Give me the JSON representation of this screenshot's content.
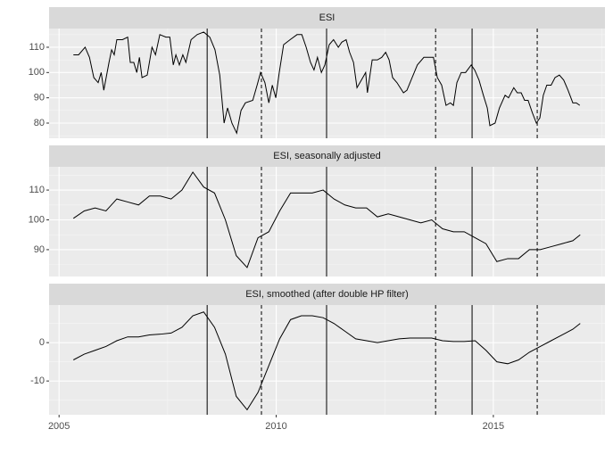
{
  "chart_data": [
    {
      "type": "line",
      "title": "ESI",
      "color": "#000000",
      "x": [
        2005.33,
        2005.45,
        2005.6,
        2005.7,
        2005.8,
        2005.9,
        2005.97,
        2006.03,
        2006.15,
        2006.21,
        2006.27,
        2006.33,
        2006.46,
        2006.58,
        2006.64,
        2006.72,
        2006.79,
        2006.85,
        2006.91,
        2007.03,
        2007.14,
        2007.22,
        2007.32,
        2007.46,
        2007.55,
        2007.63,
        2007.69,
        2007.77,
        2007.85,
        2007.92,
        2008.04,
        2008.18,
        2008.33,
        2008.47,
        2008.59,
        2008.7,
        2008.8,
        2008.88,
        2008.98,
        2009.09,
        2009.19,
        2009.29,
        2009.46,
        2009.56,
        2009.64,
        2009.74,
        2009.83,
        2009.91,
        2009.99,
        2010.07,
        2010.17,
        2010.32,
        2010.48,
        2010.59,
        2010.69,
        2010.79,
        2010.87,
        2010.95,
        2011.04,
        2011.12,
        2011.22,
        2011.32,
        2011.43,
        2011.51,
        2011.61,
        2011.69,
        2011.78,
        2011.86,
        2011.96,
        2012.06,
        2012.1,
        2012.21,
        2012.33,
        2012.43,
        2012.52,
        2012.6,
        2012.68,
        2012.78,
        2012.93,
        2013.01,
        2013.13,
        2013.25,
        2013.4,
        2013.52,
        2013.62,
        2013.71,
        2013.81,
        2013.91,
        2014.01,
        2014.08,
        2014.16,
        2014.26,
        2014.36,
        2014.49,
        2014.57,
        2014.67,
        2014.77,
        2014.86,
        2014.92,
        2015.04,
        2015.14,
        2015.27,
        2015.35,
        2015.47,
        2015.55,
        2015.64,
        2015.72,
        2015.8,
        2015.9,
        2015.99,
        2016.07,
        2016.15,
        2016.23,
        2016.33,
        2016.42,
        2016.52,
        2016.62,
        2016.72,
        2016.83,
        2016.91,
        2016.99
      ],
      "values": [
        107,
        107,
        110,
        106,
        98,
        96,
        100,
        93,
        104,
        109,
        107,
        113,
        113,
        114,
        104,
        104,
        100,
        106,
        98,
        99,
        110,
        107,
        115,
        114,
        114,
        103,
        107,
        103,
        107,
        104,
        113,
        115,
        116,
        114,
        109,
        99,
        80,
        86,
        80,
        76,
        85,
        88,
        89,
        95,
        100,
        96,
        88,
        95,
        90,
        100,
        111,
        113,
        115,
        115,
        110,
        104,
        101,
        106,
        100,
        103,
        111,
        113,
        110,
        112,
        113,
        108,
        104,
        94,
        97,
        100,
        92,
        105,
        105,
        106,
        108,
        105,
        98,
        96,
        92,
        93,
        98,
        103,
        106,
        106,
        106,
        98,
        95,
        87,
        88,
        87,
        96,
        100,
        100,
        103,
        101,
        97,
        91,
        86,
        79,
        80,
        86,
        91,
        90,
        94,
        92,
        92,
        89,
        89,
        84,
        80,
        82,
        91,
        95,
        95,
        98,
        99,
        97,
        93,
        88,
        88,
        87
      ],
      "xlim": [
        2004.77,
        2017.57
      ],
      "xticks": [
        2005,
        2010,
        2015
      ],
      "ylim": [
        74.0,
        117.4
      ],
      "yticks": [
        80,
        90,
        100,
        110
      ],
      "vlines": [
        {
          "x": 2008.41,
          "style": "solid"
        },
        {
          "x": 2009.66,
          "style": "dashed"
        },
        {
          "x": 2011.16,
          "style": "solid"
        },
        {
          "x": 2013.67,
          "style": "dashed"
        },
        {
          "x": 2014.51,
          "style": "solid"
        },
        {
          "x": 2016.01,
          "style": "dashed"
        }
      ],
      "grid": true
    },
    {
      "type": "line",
      "title": "ESI, seasonally adjusted",
      "color": "#000000",
      "x": [
        2005.33,
        2005.58,
        2005.83,
        2006.08,
        2006.33,
        2006.58,
        2006.83,
        2007.08,
        2007.33,
        2007.58,
        2007.83,
        2008.08,
        2008.33,
        2008.58,
        2008.83,
        2009.08,
        2009.33,
        2009.58,
        2009.83,
        2010.08,
        2010.33,
        2010.58,
        2010.83,
        2011.08,
        2011.33,
        2011.58,
        2011.83,
        2012.08,
        2012.33,
        2012.58,
        2012.83,
        2013.08,
        2013.33,
        2013.58,
        2013.83,
        2014.08,
        2014.33,
        2014.58,
        2014.83,
        2015.08,
        2015.33,
        2015.58,
        2015.83,
        2016.08,
        2016.33,
        2016.58,
        2016.83,
        2017.0
      ],
      "values": [
        100.5,
        103,
        104,
        103,
        107,
        106,
        105,
        108,
        108,
        107,
        110,
        116,
        111,
        109,
        100,
        88,
        84,
        94,
        96,
        103,
        109,
        109,
        109,
        110,
        107,
        105,
        104,
        104,
        101,
        102,
        101,
        100,
        99,
        100,
        97,
        96,
        96,
        94,
        92,
        86,
        87,
        87,
        90,
        90,
        91,
        92,
        93,
        95
      ],
      "xlim": [
        2004.77,
        2017.57
      ],
      "xticks": [
        2005,
        2010,
        2015
      ],
      "ylim": [
        81.0,
        117.8
      ],
      "yticks": [
        90,
        100,
        110
      ],
      "vlines": [
        {
          "x": 2008.41,
          "style": "solid"
        },
        {
          "x": 2009.66,
          "style": "dashed"
        },
        {
          "x": 2011.16,
          "style": "solid"
        },
        {
          "x": 2013.67,
          "style": "dashed"
        },
        {
          "x": 2014.51,
          "style": "solid"
        },
        {
          "x": 2016.01,
          "style": "dashed"
        }
      ],
      "grid": true
    },
    {
      "type": "line",
      "title": "ESI, smoothed (after double HP filter)",
      "color": "#000000",
      "x": [
        2005.33,
        2005.58,
        2005.83,
        2006.08,
        2006.33,
        2006.58,
        2006.83,
        2007.08,
        2007.33,
        2007.58,
        2007.83,
        2008.08,
        2008.33,
        2008.58,
        2008.83,
        2009.08,
        2009.33,
        2009.58,
        2009.83,
        2010.08,
        2010.33,
        2010.58,
        2010.83,
        2011.08,
        2011.33,
        2011.58,
        2011.83,
        2012.08,
        2012.33,
        2012.58,
        2012.83,
        2013.08,
        2013.33,
        2013.58,
        2013.83,
        2014.08,
        2014.33,
        2014.58,
        2014.83,
        2015.08,
        2015.33,
        2015.58,
        2015.83,
        2016.08,
        2016.33,
        2016.58,
        2016.83,
        2017.0
      ],
      "values": [
        -4.5,
        -3,
        -2,
        -1,
        0.5,
        1.5,
        1.5,
        2,
        2.2,
        2.5,
        4,
        7,
        8,
        4,
        -3,
        -14,
        -17.5,
        -13,
        -6,
        1,
        6,
        7,
        7,
        6.5,
        5,
        3,
        1,
        0.5,
        0,
        0.5,
        1,
        1.2,
        1.2,
        1.2,
        0.5,
        0.3,
        0.3,
        0.5,
        -2,
        -5,
        -5.5,
        -4.5,
        -2.5,
        -1,
        0.5,
        2,
        3.5,
        5
      ],
      "xlim": [
        2004.77,
        2017.57
      ],
      "xticks": [
        2005,
        2010,
        2015
      ],
      "ylim": [
        -18.8,
        9.8
      ],
      "yticks": [
        -10,
        0
      ],
      "vlines": [
        {
          "x": 2008.41,
          "style": "solid"
        },
        {
          "x": 2009.66,
          "style": "dashed"
        },
        {
          "x": 2011.16,
          "style": "solid"
        },
        {
          "x": 2013.67,
          "style": "dashed"
        },
        {
          "x": 2014.51,
          "style": "solid"
        },
        {
          "x": 2016.01,
          "style": "dashed"
        }
      ],
      "grid": true
    }
  ]
}
